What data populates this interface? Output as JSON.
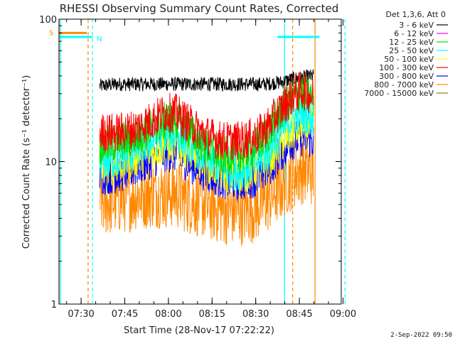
{
  "chart_data": {
    "type": "line",
    "title": "RHESSI Observing Summary Count Rates, Corrected",
    "ylabel": "Corrected Count Rate (s⁻¹ detector⁻¹)",
    "xlabel": "Start Time (28-Nov-17 07:22:22)",
    "y_scale": "log",
    "ylim": [
      1,
      100
    ],
    "y_ticks": [
      {
        "v": 1,
        "label": "1"
      },
      {
        "v": 10,
        "label": "10"
      },
      {
        "v": 100,
        "label": "100"
      }
    ],
    "xlim_minutes": [
      0,
      97
    ],
    "x_ticks": [
      {
        "m": 7.6,
        "label": "07:30"
      },
      {
        "m": 22.6,
        "label": "07:45"
      },
      {
        "m": 37.6,
        "label": "08:00"
      },
      {
        "m": 52.6,
        "label": "08:15"
      },
      {
        "m": 67.6,
        "label": "08:30"
      },
      {
        "m": 82.6,
        "label": "08:45"
      },
      {
        "m": 97.6,
        "label": "09:00"
      }
    ],
    "legend_title": "Det 1,3,6, Att 0",
    "legend_placement": "top-right outside",
    "series": [
      {
        "name": "3 - 6 keV",
        "color": "#000000",
        "x": [
          14,
          20,
          30,
          40,
          50,
          60,
          70,
          76,
          80,
          84,
          87.5
        ],
        "y": [
          34,
          35,
          35,
          35,
          35,
          35,
          35,
          36,
          38,
          39,
          40
        ]
      },
      {
        "name": "6 - 12 keV",
        "color": "#ff00ff",
        "x": [
          14,
          87.5
        ],
        "y": [
          null,
          null
        ]
      },
      {
        "name": "12 - 25 keV",
        "color": "#00dd00",
        "x": [
          14,
          20,
          26,
          32,
          36,
          40,
          44,
          50,
          56,
          62,
          68,
          72,
          76,
          80,
          84,
          87.5
        ],
        "y": [
          13,
          13.5,
          15,
          17,
          19,
          20,
          17,
          13,
          11,
          11,
          13,
          16,
          22,
          28,
          30,
          28
        ]
      },
      {
        "name": "25 - 50 keV",
        "color": "#00ffff",
        "x": [
          14,
          20,
          26,
          32,
          36,
          40,
          44,
          50,
          56,
          62,
          68,
          72,
          76,
          80,
          84,
          87.5
        ],
        "y": [
          10,
          10.5,
          12,
          14,
          15.5,
          16,
          14,
          11,
          9,
          8.5,
          10,
          12,
          16,
          20,
          22,
          20
        ]
      },
      {
        "name": "50 - 100 keV",
        "color": "#ffff00",
        "x": [
          14,
          20,
          26,
          32,
          36,
          40,
          44,
          50,
          56,
          62,
          68,
          72,
          76,
          80,
          84,
          87.5
        ],
        "y": [
          9,
          9.5,
          10.5,
          12,
          13,
          13.5,
          12,
          10,
          8.5,
          8,
          9,
          10.5,
          13,
          16,
          18,
          17
        ]
      },
      {
        "name": "100 - 300 keV",
        "color": "#ff0000",
        "x": [
          14,
          20,
          26,
          32,
          36,
          40,
          44,
          50,
          56,
          62,
          68,
          72,
          76,
          80,
          84,
          87.5
        ],
        "y": [
          16,
          16,
          17,
          19.5,
          22,
          22,
          19,
          15.5,
          14,
          14,
          15,
          18,
          23,
          29,
          32,
          28
        ]
      },
      {
        "name": "300 - 800 keV",
        "color": "#0000ff",
        "x": [
          14,
          20,
          26,
          32,
          36,
          40,
          44,
          50,
          56,
          62,
          68,
          72,
          76,
          80,
          84,
          87.5
        ],
        "y": [
          8,
          8.2,
          9,
          10.5,
          11.5,
          11.5,
          10,
          8.5,
          7.5,
          7.2,
          7.8,
          9,
          11.5,
          14,
          15,
          14
        ]
      },
      {
        "name": "800 - 7000 keV",
        "color": "#ff8800",
        "x": [
          14,
          20,
          26,
          32,
          36,
          40,
          44,
          50,
          56,
          62,
          68,
          72,
          76,
          80,
          84,
          87.5
        ],
        "y": [
          5.2,
          5.4,
          5.8,
          6,
          6,
          6,
          5.5,
          5,
          4.6,
          4.5,
          4.8,
          5.6,
          6.6,
          8,
          9,
          8.5
        ]
      },
      {
        "name": "7000 - 15000 keV",
        "color": "#888800",
        "x": [
          14,
          87.5
        ],
        "y": [
          null,
          null
        ]
      }
    ],
    "flags": [
      {
        "label": "S",
        "color": "#ff8800",
        "x": [
          0,
          9.5
        ],
        "y": 80
      },
      {
        "label": "N",
        "color": "#00ffff",
        "x": [
          0,
          11.5
        ],
        "y": 75
      },
      {
        "label": "",
        "color": "#00ffff",
        "x": [
          75,
          89.5
        ],
        "y": 75
      }
    ],
    "vlines": [
      {
        "m": 0.5,
        "color": "#00ffff",
        "dash": false
      },
      {
        "m": 0,
        "color": "#ff8800",
        "dash": false
      },
      {
        "m": 10,
        "color": "#ff8800",
        "dash": true
      },
      {
        "m": 11.5,
        "color": "#00ffff",
        "dash": true
      },
      {
        "m": 77.5,
        "color": "#00ffff",
        "dash": false
      },
      {
        "m": 80.3,
        "color": "#ff8800",
        "dash": true
      },
      {
        "m": 88,
        "color": "#ff8800",
        "dash": false
      },
      {
        "m": 98.3,
        "color": "#00ffff",
        "dash": true
      }
    ],
    "timestamp": "2-Sep-2022 09:50"
  }
}
